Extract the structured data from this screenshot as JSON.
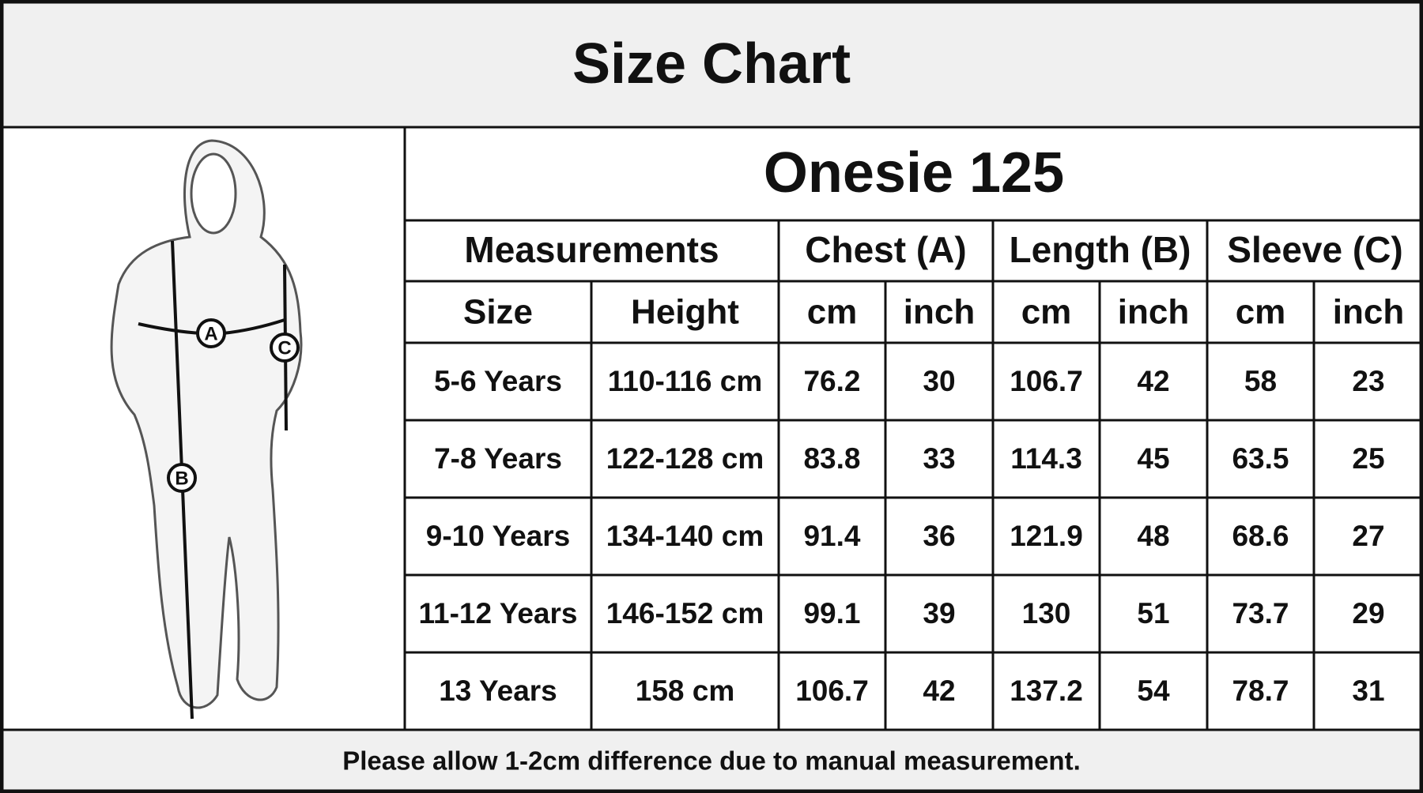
{
  "header": {
    "title": "Size Chart"
  },
  "figure": {
    "markers": [
      "A",
      "B",
      "C"
    ]
  },
  "table": {
    "title": "Onesie 125",
    "groups": [
      "Measurements",
      "Chest (A)",
      "Length (B)",
      "Sleeve (C)"
    ],
    "columns": [
      "Size",
      "Height",
      "cm",
      "inch",
      "cm",
      "inch",
      "cm",
      "inch"
    ],
    "rows": [
      [
        "5-6 Years",
        "110-116 cm",
        "76.2",
        "30",
        "106.7",
        "42",
        "58",
        "23"
      ],
      [
        "7-8 Years",
        "122-128 cm",
        "83.8",
        "33",
        "114.3",
        "45",
        "63.5",
        "25"
      ],
      [
        "9-10 Years",
        "134-140 cm",
        "91.4",
        "36",
        "121.9",
        "48",
        "68.6",
        "27"
      ],
      [
        "11-12 Years",
        "146-152 cm",
        "99.1",
        "39",
        "130",
        "51",
        "73.7",
        "29"
      ],
      [
        "13 Years",
        "158 cm",
        "106.7",
        "42",
        "137.2",
        "54",
        "78.7",
        "31"
      ]
    ]
  },
  "footer": {
    "note": "Please allow 1-2cm difference due to manual measurement."
  }
}
